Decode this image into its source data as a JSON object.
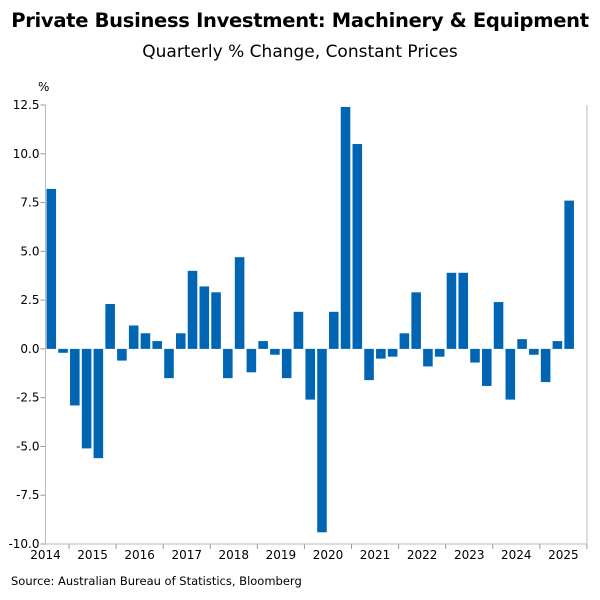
{
  "chart_data": {
    "type": "bar",
    "title": "Private Business Investment: Machinery & Equipment",
    "subtitle": "Quarterly % Change, Constant Prices",
    "ylabel": "%",
    "xlabel": "",
    "ylim": [
      -10,
      12.5
    ],
    "yticks": [
      "12.5",
      "10.0",
      "7.5",
      "5.0",
      "2.5",
      "0.0",
      "-2.5",
      "-5.0",
      "-7.5",
      "-10.0"
    ],
    "xticks": [
      "2014",
      "2015",
      "2016",
      "2017",
      "2018",
      "2019",
      "2020",
      "2021",
      "2022",
      "2023",
      "2024",
      "2025"
    ],
    "start": "2014 Q3",
    "values": [
      8.2,
      -0.2,
      -2.9,
      -5.1,
      -5.6,
      2.3,
      -0.6,
      1.2,
      0.8,
      0.4,
      -1.5,
      0.8,
      4.0,
      3.2,
      2.9,
      -1.5,
      4.7,
      -1.2,
      0.4,
      -0.3,
      -1.5,
      1.9,
      -2.6,
      -9.4,
      1.9,
      12.4,
      10.5,
      -1.6,
      -0.5,
      -0.4,
      0.8,
      2.9,
      -0.9,
      -0.4,
      3.9,
      3.9,
      -0.7,
      -1.9,
      2.4,
      -2.6,
      0.5,
      -0.3,
      -1.7,
      0.4,
      7.6
    ],
    "bar_color": "#0066B3",
    "grid": false,
    "source": "Source: Australian Bureau of Statistics, Bloomberg"
  }
}
